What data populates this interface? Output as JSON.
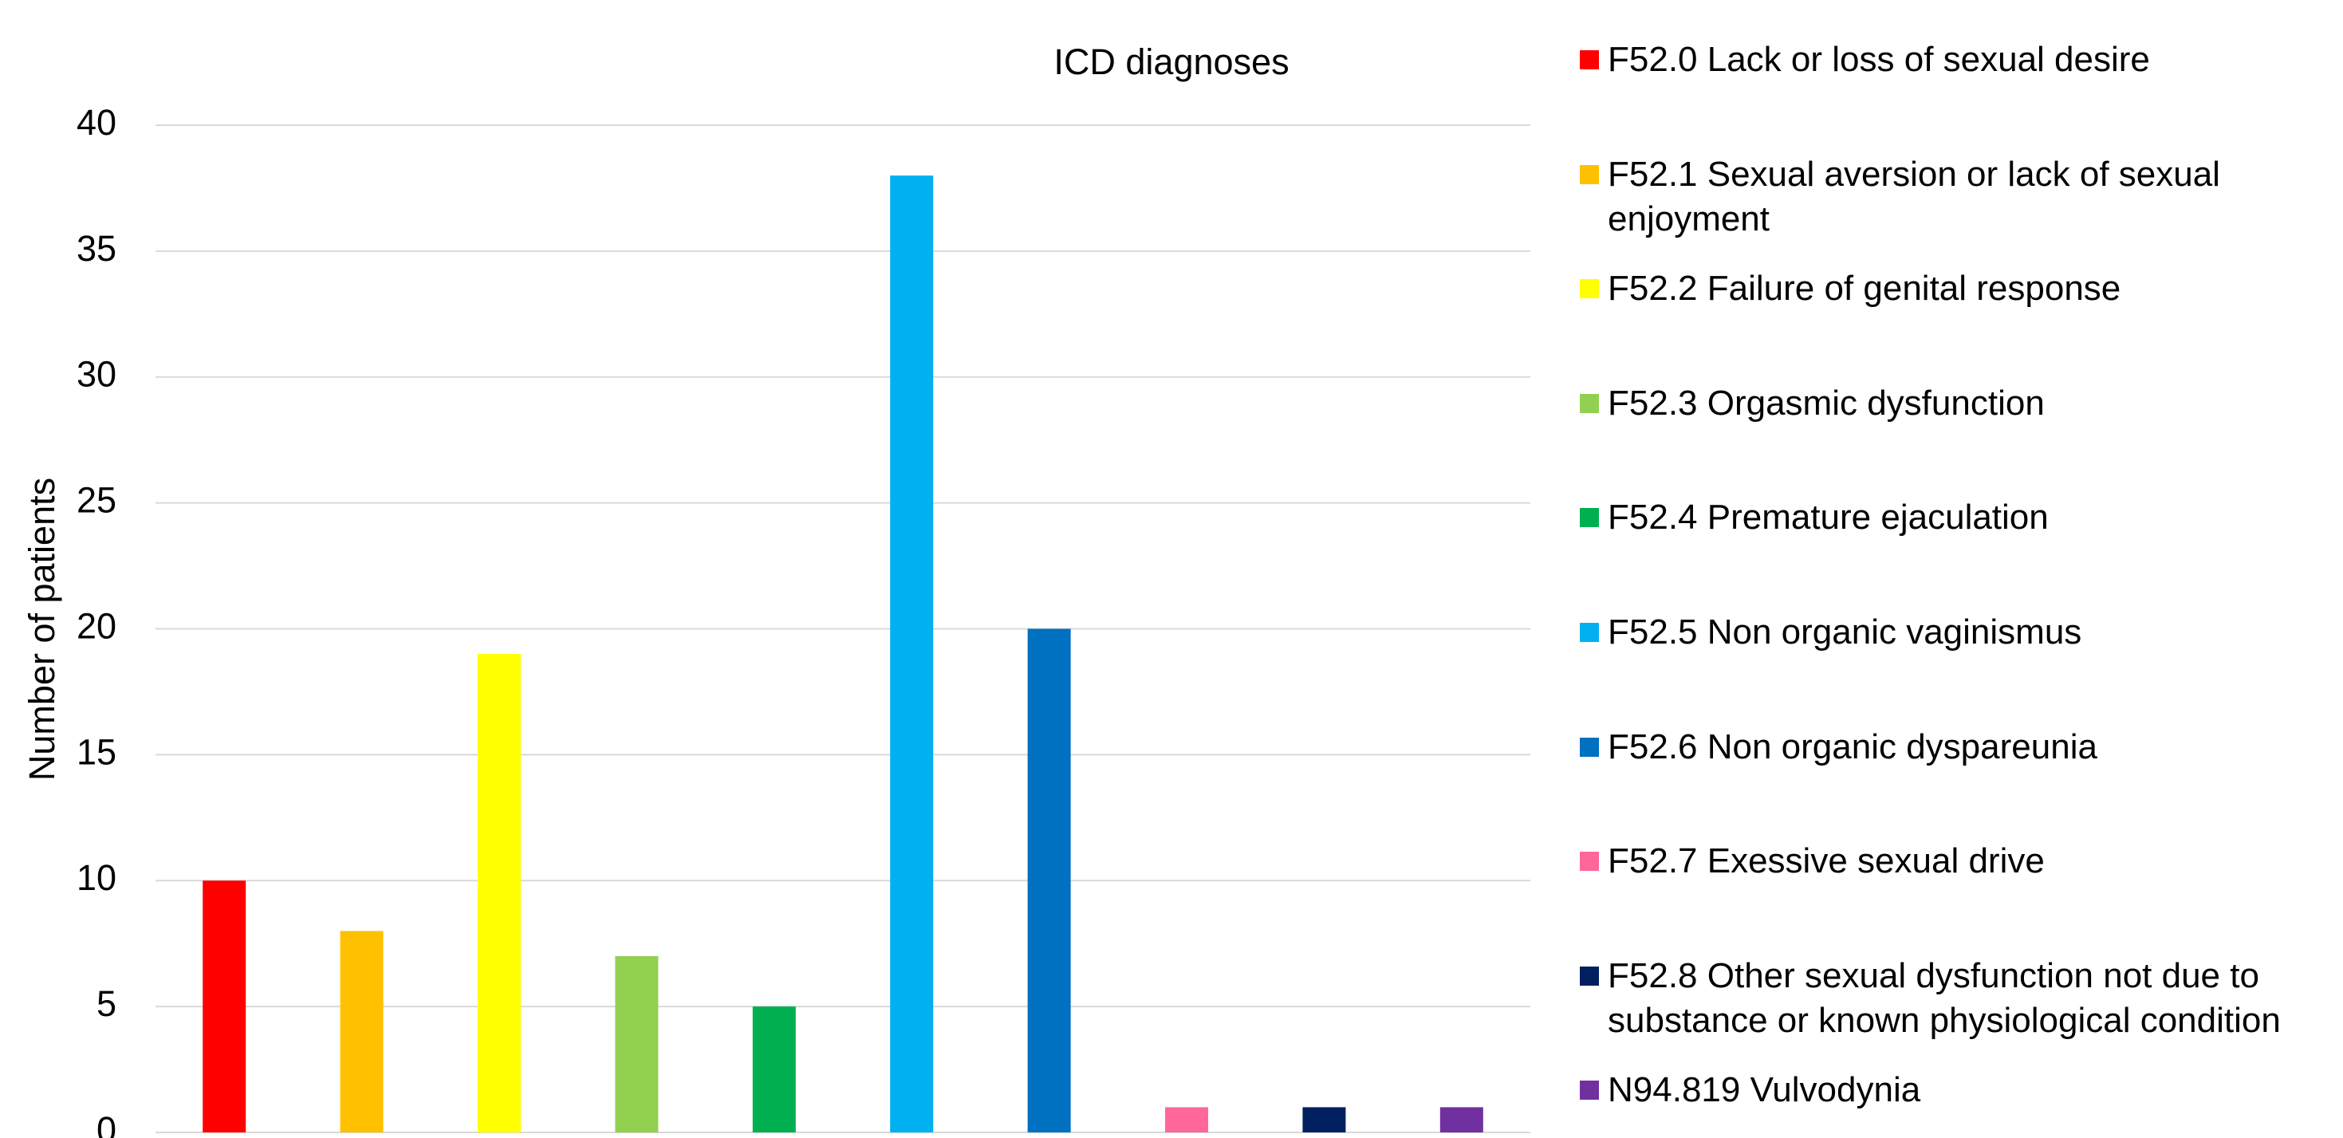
{
  "chart_data": {
    "type": "bar",
    "title": "ICD diagnoses",
    "y_label": "Number of patients",
    "categories": [
      null,
      null,
      null,
      null,
      null,
      null,
      null,
      null,
      null,
      null
    ],
    "values": [
      10,
      8,
      19,
      7,
      5,
      38,
      20,
      1,
      1,
      1
    ],
    "colors": [
      "#ff0000",
      "#ffc000",
      "#ffff00",
      "#92d050",
      "#00b050",
      "#00b0f0",
      "#0070c0",
      "#ff6699",
      "#002060",
      "#7030a0"
    ],
    "legend_labels": [
      "F52.0 Lack or loss of sexual desire",
      "F52.1 Sexual aversion or lack of sexual enjoyment",
      "F52.2 Failure of genital response",
      "F52.3 Orgasmic dysfunction",
      "F52.4 Premature ejaculation",
      "F52.5 Non organic vaginismus",
      "F52.6 Non organic dyspareunia",
      "F52.7 Exessive sexual drive",
      "F52.8 Other sexual dysfunction not due to substance or known physiological condition",
      "N94.819 Vulvodynia"
    ],
    "ylim": [
      0,
      40
    ],
    "yticks": [
      0,
      5,
      10,
      15,
      20,
      25,
      30,
      35,
      40
    ],
    "grid": true,
    "legend_position": "right"
  }
}
